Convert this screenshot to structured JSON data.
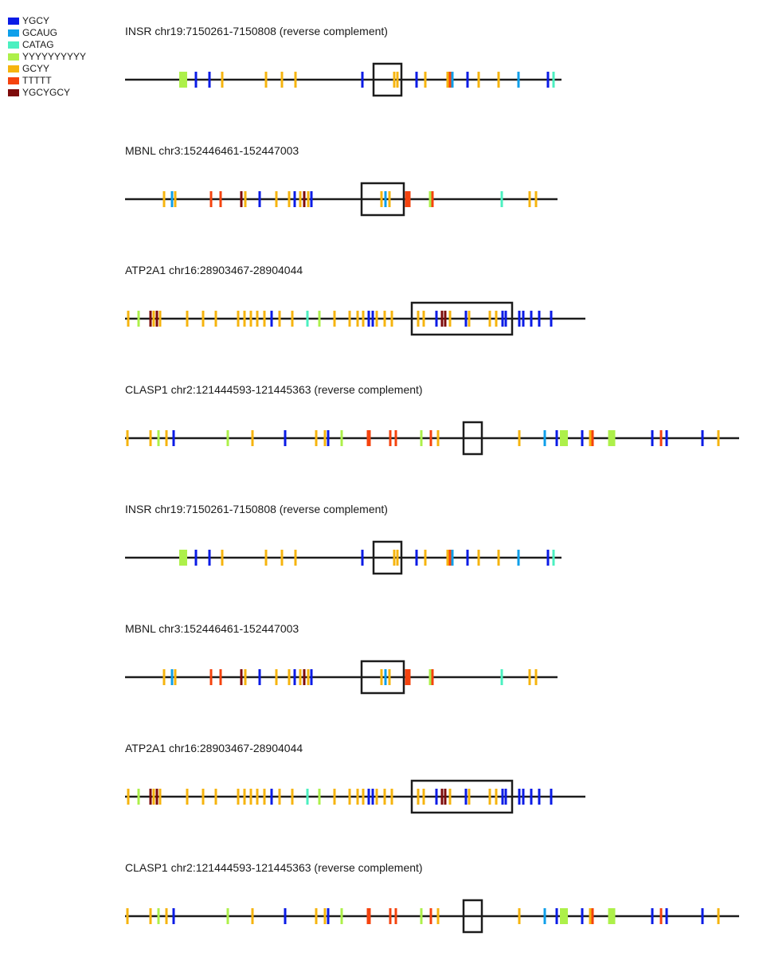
{
  "legend": [
    {
      "label": "YGCY",
      "color": "#0a1be6"
    },
    {
      "label": "GCAUG",
      "color": "#0e9fea"
    },
    {
      "label": "CATAG",
      "color": "#4bf0c0"
    },
    {
      "label": "YYYYYYYYYY",
      "color": "#adf04a"
    },
    {
      "label": "GCYY",
      "color": "#f6b40e"
    },
    {
      "label": "TTTTT",
      "color": "#f5430e"
    },
    {
      "label": "YGCYGCY",
      "color": "#7d0a0a"
    }
  ],
  "tracks": [
    {
      "title": "INSR chr19:7150261-7150808 (reverse complement)",
      "length": 548,
      "exon": [
        312,
        347
      ],
      "motifs": [
        {
          "type": "YYYYYYYYYY",
          "pos": 73,
          "w": 10
        },
        {
          "type": "YGCY",
          "pos": 89
        },
        {
          "type": "YGCY",
          "pos": 106
        },
        {
          "type": "GCYY",
          "pos": 122
        },
        {
          "type": "GCYY",
          "pos": 177
        },
        {
          "type": "GCYY",
          "pos": 197
        },
        {
          "type": "GCYY",
          "pos": 214
        },
        {
          "type": "YGCY",
          "pos": 298
        },
        {
          "type": "GCYY",
          "pos": 338
        },
        {
          "type": "GCYY",
          "pos": 342
        },
        {
          "type": "YGCY",
          "pos": 366
        },
        {
          "type": "GCYY",
          "pos": 377
        },
        {
          "type": "GCYY",
          "pos": 405
        },
        {
          "type": "TTTTT",
          "pos": 408
        },
        {
          "type": "GCAUG",
          "pos": 411
        },
        {
          "type": "YGCY",
          "pos": 430
        },
        {
          "type": "GCYY",
          "pos": 444
        },
        {
          "type": "GCYY",
          "pos": 469
        },
        {
          "type": "GCAUG",
          "pos": 494
        },
        {
          "type": "YGCY",
          "pos": 531
        },
        {
          "type": "CATAG",
          "pos": 538
        }
      ]
    },
    {
      "title": "MBNL chr3:152446461-152447003",
      "length": 543,
      "exon": [
        297,
        350
      ],
      "motifs": [
        {
          "type": "GCYY",
          "pos": 49
        },
        {
          "type": "GCAUG",
          "pos": 59
        },
        {
          "type": "GCYY",
          "pos": 63
        },
        {
          "type": "TTTTT",
          "pos": 108
        },
        {
          "type": "TTTTT",
          "pos": 120
        },
        {
          "type": "YGCYGCY",
          "pos": 146
        },
        {
          "type": "GCYY",
          "pos": 151
        },
        {
          "type": "YGCY",
          "pos": 169
        },
        {
          "type": "GCYY",
          "pos": 190
        },
        {
          "type": "GCYY",
          "pos": 206
        },
        {
          "type": "YGCY",
          "pos": 213
        },
        {
          "type": "GCYY",
          "pos": 220
        },
        {
          "type": "YGCYGCY",
          "pos": 225
        },
        {
          "type": "GCYY",
          "pos": 230
        },
        {
          "type": "YGCY",
          "pos": 234
        },
        {
          "type": "GCYY",
          "pos": 322
        },
        {
          "type": "GCAUG",
          "pos": 327
        },
        {
          "type": "GCYY",
          "pos": 332
        },
        {
          "type": "TTTTT",
          "pos": 355,
          "w": 7
        },
        {
          "type": "YYYYYYYYYY",
          "pos": 383
        },
        {
          "type": "TTTTT",
          "pos": 386
        },
        {
          "type": "CATAG",
          "pos": 473
        },
        {
          "type": "GCYY",
          "pos": 508
        },
        {
          "type": "GCYY",
          "pos": 516
        }
      ]
    },
    {
      "title": "ATP2A1 chr16:28903467-28904044",
      "length": 578,
      "exon": [
        360,
        486
      ],
      "motifs": [
        {
          "type": "GCYY",
          "pos": 4
        },
        {
          "type": "YYYYYYYYYY",
          "pos": 17
        },
        {
          "type": "YGCYGCY",
          "pos": 32
        },
        {
          "type": "GCYY",
          "pos": 36
        },
        {
          "type": "YGCYGCY",
          "pos": 40
        },
        {
          "type": "GCYY",
          "pos": 44
        },
        {
          "type": "GCYY",
          "pos": 78
        },
        {
          "type": "GCYY",
          "pos": 98
        },
        {
          "type": "GCYY",
          "pos": 114
        },
        {
          "type": "GCYY",
          "pos": 142
        },
        {
          "type": "GCYY",
          "pos": 150
        },
        {
          "type": "GCYY",
          "pos": 158
        },
        {
          "type": "GCYY",
          "pos": 166
        },
        {
          "type": "GCYY",
          "pos": 175
        },
        {
          "type": "YGCY",
          "pos": 184
        },
        {
          "type": "GCYY",
          "pos": 194
        },
        {
          "type": "GCYY",
          "pos": 210
        },
        {
          "type": "CATAG",
          "pos": 229
        },
        {
          "type": "YYYYYYYYYY",
          "pos": 244
        },
        {
          "type": "GCYY",
          "pos": 263
        },
        {
          "type": "GCYY",
          "pos": 282
        },
        {
          "type": "GCYY",
          "pos": 292
        },
        {
          "type": "GCYY",
          "pos": 299
        },
        {
          "type": "YGCY",
          "pos": 306
        },
        {
          "type": "YGCY",
          "pos": 311
        },
        {
          "type": "GCYY",
          "pos": 316
        },
        {
          "type": "GCYY",
          "pos": 326
        },
        {
          "type": "GCYY",
          "pos": 335
        },
        {
          "type": "GCYY",
          "pos": 368
        },
        {
          "type": "GCYY",
          "pos": 375
        },
        {
          "type": "YGCY",
          "pos": 391
        },
        {
          "type": "YGCYGCY",
          "pos": 398
        },
        {
          "type": "YGCYGCY",
          "pos": 402
        },
        {
          "type": "GCYY",
          "pos": 408
        },
        {
          "type": "YGCY",
          "pos": 428
        },
        {
          "type": "GCYY",
          "pos": 432
        },
        {
          "type": "GCYY",
          "pos": 458
        },
        {
          "type": "GCYY",
          "pos": 466
        },
        {
          "type": "YGCY",
          "pos": 474
        },
        {
          "type": "YGCY",
          "pos": 478
        },
        {
          "type": "YGCY",
          "pos": 495
        },
        {
          "type": "YGCY",
          "pos": 500
        },
        {
          "type": "YGCY",
          "pos": 510
        },
        {
          "type": "YGCY",
          "pos": 520
        },
        {
          "type": "YGCY",
          "pos": 535
        }
      ]
    },
    {
      "title": "CLASP1 chr2:121444593-121445363 (reverse complement)",
      "length": 771,
      "exon": [
        425,
        448
      ],
      "motifs": [
        {
          "type": "GCYY",
          "pos": 3
        },
        {
          "type": "GCYY",
          "pos": 32
        },
        {
          "type": "YYYYYYYYYY",
          "pos": 42
        },
        {
          "type": "GCYY",
          "pos": 52
        },
        {
          "type": "YGCY",
          "pos": 61
        },
        {
          "type": "YYYYYYYYYY",
          "pos": 129
        },
        {
          "type": "GCYY",
          "pos": 160
        },
        {
          "type": "YGCY",
          "pos": 201
        },
        {
          "type": "GCYY",
          "pos": 240
        },
        {
          "type": "GCYY",
          "pos": 251
        },
        {
          "type": "YGCY",
          "pos": 255
        },
        {
          "type": "YYYYYYYYYY",
          "pos": 272
        },
        {
          "type": "TTTTT",
          "pos": 306,
          "w": 5
        },
        {
          "type": "TTTTT",
          "pos": 333
        },
        {
          "type": "TTTTT",
          "pos": 340
        },
        {
          "type": "YYYYYYYYYY",
          "pos": 372
        },
        {
          "type": "TTTTT",
          "pos": 384
        },
        {
          "type": "GCYY",
          "pos": 393
        },
        {
          "type": "GCYY",
          "pos": 495
        },
        {
          "type": "GCAUG",
          "pos": 527
        },
        {
          "type": "YGCY",
          "pos": 542
        },
        {
          "type": "YYYYYYYYYY",
          "pos": 551,
          "w": 10
        },
        {
          "type": "YGCY",
          "pos": 574
        },
        {
          "type": "GCYY",
          "pos": 584
        },
        {
          "type": "TTTTT",
          "pos": 587
        },
        {
          "type": "YYYYYYYYYY",
          "pos": 611,
          "w": 9
        },
        {
          "type": "YGCY",
          "pos": 662
        },
        {
          "type": "TTTTT",
          "pos": 673
        },
        {
          "type": "YGCY",
          "pos": 680
        },
        {
          "type": "YGCY",
          "pos": 725
        },
        {
          "type": "GCYY",
          "pos": 745
        }
      ]
    },
    {
      "title": "INSR chr19:7150261-7150808 (reverse complement)",
      "length": 548,
      "exon": [
        312,
        347
      ],
      "motifs": [
        {
          "type": "YYYYYYYYYY",
          "pos": 73,
          "w": 10
        },
        {
          "type": "YGCY",
          "pos": 89
        },
        {
          "type": "YGCY",
          "pos": 106
        },
        {
          "type": "GCYY",
          "pos": 122
        },
        {
          "type": "GCYY",
          "pos": 177
        },
        {
          "type": "GCYY",
          "pos": 197
        },
        {
          "type": "GCYY",
          "pos": 214
        },
        {
          "type": "YGCY",
          "pos": 298
        },
        {
          "type": "GCYY",
          "pos": 338
        },
        {
          "type": "GCYY",
          "pos": 342
        },
        {
          "type": "YGCY",
          "pos": 366
        },
        {
          "type": "GCYY",
          "pos": 377
        },
        {
          "type": "GCYY",
          "pos": 405
        },
        {
          "type": "TTTTT",
          "pos": 408
        },
        {
          "type": "GCAUG",
          "pos": 411
        },
        {
          "type": "YGCY",
          "pos": 430
        },
        {
          "type": "GCYY",
          "pos": 444
        },
        {
          "type": "GCYY",
          "pos": 469
        },
        {
          "type": "GCAUG",
          "pos": 494
        },
        {
          "type": "YGCY",
          "pos": 531
        },
        {
          "type": "CATAG",
          "pos": 538
        }
      ]
    },
    {
      "title": "MBNL chr3:152446461-152447003",
      "length": 543,
      "exon": [
        297,
        350
      ],
      "motifs": [
        {
          "type": "GCYY",
          "pos": 49
        },
        {
          "type": "GCAUG",
          "pos": 59
        },
        {
          "type": "GCYY",
          "pos": 63
        },
        {
          "type": "TTTTT",
          "pos": 108
        },
        {
          "type": "TTTTT",
          "pos": 120
        },
        {
          "type": "YGCYGCY",
          "pos": 146
        },
        {
          "type": "GCYY",
          "pos": 151
        },
        {
          "type": "YGCY",
          "pos": 169
        },
        {
          "type": "GCYY",
          "pos": 190
        },
        {
          "type": "GCYY",
          "pos": 206
        },
        {
          "type": "YGCY",
          "pos": 213
        },
        {
          "type": "GCYY",
          "pos": 220
        },
        {
          "type": "YGCYGCY",
          "pos": 225
        },
        {
          "type": "GCYY",
          "pos": 230
        },
        {
          "type": "YGCY",
          "pos": 234
        },
        {
          "type": "GCYY",
          "pos": 322
        },
        {
          "type": "GCAUG",
          "pos": 327
        },
        {
          "type": "GCYY",
          "pos": 332
        },
        {
          "type": "TTTTT",
          "pos": 355,
          "w": 7
        },
        {
          "type": "YYYYYYYYYY",
          "pos": 383
        },
        {
          "type": "TTTTT",
          "pos": 386
        },
        {
          "type": "CATAG",
          "pos": 473
        },
        {
          "type": "GCYY",
          "pos": 508
        },
        {
          "type": "GCYY",
          "pos": 516
        }
      ]
    },
    {
      "title": "ATP2A1 chr16:28903467-28904044",
      "length": 578,
      "exon": [
        360,
        486
      ],
      "motifs": [
        {
          "type": "GCYY",
          "pos": 4
        },
        {
          "type": "YYYYYYYYYY",
          "pos": 17
        },
        {
          "type": "YGCYGCY",
          "pos": 32
        },
        {
          "type": "GCYY",
          "pos": 36
        },
        {
          "type": "YGCYGCY",
          "pos": 40
        },
        {
          "type": "GCYY",
          "pos": 44
        },
        {
          "type": "GCYY",
          "pos": 78
        },
        {
          "type": "GCYY",
          "pos": 98
        },
        {
          "type": "GCYY",
          "pos": 114
        },
        {
          "type": "GCYY",
          "pos": 142
        },
        {
          "type": "GCYY",
          "pos": 150
        },
        {
          "type": "GCYY",
          "pos": 158
        },
        {
          "type": "GCYY",
          "pos": 166
        },
        {
          "type": "GCYY",
          "pos": 175
        },
        {
          "type": "YGCY",
          "pos": 184
        },
        {
          "type": "GCYY",
          "pos": 194
        },
        {
          "type": "GCYY",
          "pos": 210
        },
        {
          "type": "CATAG",
          "pos": 229
        },
        {
          "type": "YYYYYYYYYY",
          "pos": 244
        },
        {
          "type": "GCYY",
          "pos": 263
        },
        {
          "type": "GCYY",
          "pos": 282
        },
        {
          "type": "GCYY",
          "pos": 292
        },
        {
          "type": "GCYY",
          "pos": 299
        },
        {
          "type": "YGCY",
          "pos": 306
        },
        {
          "type": "YGCY",
          "pos": 311
        },
        {
          "type": "GCYY",
          "pos": 316
        },
        {
          "type": "GCYY",
          "pos": 326
        },
        {
          "type": "GCYY",
          "pos": 335
        },
        {
          "type": "GCYY",
          "pos": 368
        },
        {
          "type": "GCYY",
          "pos": 375
        },
        {
          "type": "YGCY",
          "pos": 391
        },
        {
          "type": "YGCYGCY",
          "pos": 398
        },
        {
          "type": "YGCYGCY",
          "pos": 402
        },
        {
          "type": "GCYY",
          "pos": 408
        },
        {
          "type": "YGCY",
          "pos": 428
        },
        {
          "type": "GCYY",
          "pos": 432
        },
        {
          "type": "GCYY",
          "pos": 458
        },
        {
          "type": "GCYY",
          "pos": 466
        },
        {
          "type": "YGCY",
          "pos": 474
        },
        {
          "type": "YGCY",
          "pos": 478
        },
        {
          "type": "YGCY",
          "pos": 495
        },
        {
          "type": "YGCY",
          "pos": 500
        },
        {
          "type": "YGCY",
          "pos": 510
        },
        {
          "type": "YGCY",
          "pos": 520
        },
        {
          "type": "YGCY",
          "pos": 535
        }
      ]
    },
    {
      "title": "CLASP1 chr2:121444593-121445363 (reverse complement)",
      "length": 771,
      "exon": [
        425,
        448
      ],
      "motifs": [
        {
          "type": "GCYY",
          "pos": 3
        },
        {
          "type": "GCYY",
          "pos": 32
        },
        {
          "type": "YYYYYYYYYY",
          "pos": 42
        },
        {
          "type": "GCYY",
          "pos": 52
        },
        {
          "type": "YGCY",
          "pos": 61
        },
        {
          "type": "YYYYYYYYYY",
          "pos": 129
        },
        {
          "type": "GCYY",
          "pos": 160
        },
        {
          "type": "YGCY",
          "pos": 201
        },
        {
          "type": "GCYY",
          "pos": 240
        },
        {
          "type": "GCYY",
          "pos": 251
        },
        {
          "type": "YGCY",
          "pos": 255
        },
        {
          "type": "YYYYYYYYYY",
          "pos": 272
        },
        {
          "type": "TTTTT",
          "pos": 306,
          "w": 5
        },
        {
          "type": "TTTTT",
          "pos": 333
        },
        {
          "type": "TTTTT",
          "pos": 340
        },
        {
          "type": "YYYYYYYYYY",
          "pos": 372
        },
        {
          "type": "TTTTT",
          "pos": 384
        },
        {
          "type": "GCYY",
          "pos": 393
        },
        {
          "type": "GCYY",
          "pos": 495
        },
        {
          "type": "GCAUG",
          "pos": 527
        },
        {
          "type": "YGCY",
          "pos": 542
        },
        {
          "type": "YYYYYYYYYY",
          "pos": 551,
          "w": 10
        },
        {
          "type": "YGCY",
          "pos": 574
        },
        {
          "type": "GCYY",
          "pos": 584
        },
        {
          "type": "TTTTT",
          "pos": 587
        },
        {
          "type": "YYYYYYYYYY",
          "pos": 611,
          "w": 9
        },
        {
          "type": "YGCY",
          "pos": 662
        },
        {
          "type": "TTTTT",
          "pos": 673
        },
        {
          "type": "YGCY",
          "pos": 680
        },
        {
          "type": "YGCY",
          "pos": 725
        },
        {
          "type": "GCYY",
          "pos": 745
        }
      ]
    }
  ]
}
